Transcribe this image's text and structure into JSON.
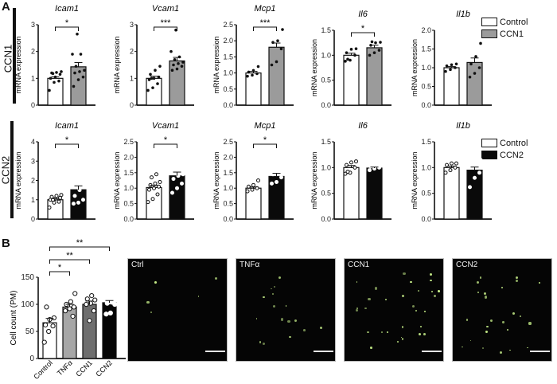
{
  "panels": {
    "A": {
      "letter": "A",
      "rows": [
        {
          "label": "CCN1",
          "treatment_color": "#9b9b9b",
          "legend": [
            "Control",
            "CCN1"
          ]
        },
        {
          "label": "CCN2",
          "treatment_color": "#0a0a0a",
          "legend": [
            "Control",
            "CCN2"
          ]
        }
      ]
    },
    "B": {
      "letter": "B",
      "images": [
        {
          "label": "Ctrl"
        },
        {
          "label": "TNFα"
        },
        {
          "label": "CCN1"
        },
        {
          "label": "CCN2"
        }
      ]
    }
  },
  "chart_data": [
    {
      "type": "bar",
      "panel": "A",
      "row": "CCN1",
      "title": "Icam1",
      "xlabel": "",
      "ylabel": "mRNA expression",
      "ylim": [
        0,
        3
      ],
      "yticks": [
        "0",
        "1",
        "2",
        "3"
      ],
      "categories": [
        "Control",
        "CCN1"
      ],
      "values": [
        1.0,
        1.43
      ],
      "errors": [
        0.06,
        0.16
      ],
      "significance": "*",
      "points": [
        [
          0.55,
          0.85,
          0.9,
          1.0,
          1.05,
          1.15,
          1.2,
          1.22,
          1.25,
          1.18
        ],
        [
          0.7,
          0.95,
          1.05,
          1.2,
          1.25,
          1.3,
          1.45,
          1.9,
          1.9,
          2.65
        ]
      ]
    },
    {
      "type": "bar",
      "panel": "A",
      "row": "CCN1",
      "title": "Vcam1",
      "xlabel": "",
      "ylabel": "mRNA expression",
      "ylim": [
        0,
        3
      ],
      "yticks": [
        "0",
        "1",
        "2",
        "3"
      ],
      "categories": [
        "Control",
        "CCN1"
      ],
      "values": [
        1.0,
        1.65
      ],
      "errors": [
        0.08,
        0.13
      ],
      "significance": "***",
      "points": [
        [
          0.55,
          0.65,
          0.8,
          0.95,
          1.0,
          1.05,
          1.15,
          1.3,
          1.45,
          1.0
        ],
        [
          1.3,
          1.35,
          1.45,
          1.5,
          1.55,
          1.6,
          1.7,
          1.8,
          2.0,
          2.8
        ]
      ]
    },
    {
      "type": "bar",
      "panel": "A",
      "row": "CCN1",
      "title": "Mcp1",
      "xlabel": "",
      "ylabel": "mRNA expression",
      "ylim": [
        0,
        2.5
      ],
      "yticks": [
        "0.0",
        "0.5",
        "1.0",
        "1.5",
        "2.0",
        "2.5"
      ],
      "categories": [
        "Control",
        "CCN1"
      ],
      "values": [
        1.0,
        1.8
      ],
      "errors": [
        0.05,
        0.13
      ],
      "significance": "***",
      "points": [
        [
          0.9,
          0.93,
          0.98,
          1.03,
          1.08,
          1.2
        ],
        [
          1.25,
          1.35,
          1.75,
          1.95,
          2.0,
          2.35
        ]
      ]
    },
    {
      "type": "bar",
      "panel": "A",
      "row": "CCN1",
      "title": "Il6",
      "xlabel": "",
      "ylabel": "mRNA expression",
      "ylim": [
        0,
        1.5
      ],
      "yticks": [
        "0.0",
        "0.5",
        "1.0",
        "1.5"
      ],
      "categories": [
        "Control",
        "CCN1"
      ],
      "values": [
        1.0,
        1.15
      ],
      "errors": [
        0.04,
        0.05
      ],
      "significance": "*",
      "points": [
        [
          0.88,
          0.9,
          1.0,
          1.05,
          1.12,
          1.13,
          0.92
        ],
        [
          1.0,
          1.05,
          1.1,
          1.2,
          1.25,
          1.26,
          1.27
        ]
      ]
    },
    {
      "type": "bar",
      "panel": "A",
      "row": "CCN1",
      "title": "Il1b",
      "xlabel": "",
      "ylabel": "mRNA expression",
      "ylim": [
        0,
        2.0
      ],
      "yticks": [
        "0.0",
        "0.5",
        "1.0",
        "1.5",
        "2.0"
      ],
      "categories": [
        "Control",
        "CCN1"
      ],
      "values": [
        1.0,
        1.14
      ],
      "errors": [
        0.03,
        0.12
      ],
      "significance": "",
      "points": [
        [
          0.9,
          0.95,
          1.0,
          1.05,
          1.08,
          1.1
        ],
        [
          0.75,
          0.85,
          1.0,
          1.1,
          1.3,
          1.65
        ]
      ]
    },
    {
      "type": "bar",
      "panel": "A",
      "row": "CCN2",
      "title": "Icam1",
      "xlabel": "",
      "ylabel": "mRNA expression",
      "ylim": [
        0,
        4
      ],
      "yticks": [
        "0",
        "1",
        "2",
        "3",
        "4"
      ],
      "categories": [
        "Control",
        "CCN2"
      ],
      "values": [
        1.0,
        1.52
      ],
      "errors": [
        0.06,
        0.2
      ],
      "significance": "*",
      "points": [
        [
          0.6,
          0.85,
          0.9,
          1.0,
          1.05,
          1.1,
          1.15,
          1.2,
          1.25,
          1.0
        ],
        [
          0.8,
          0.85,
          1.0,
          1.2,
          1.5,
          1.7,
          1.8,
          2.35,
          3.2
        ]
      ]
    },
    {
      "type": "bar",
      "panel": "A",
      "row": "CCN2",
      "title": "Vcam1",
      "xlabel": "",
      "ylabel": "mRNA expression",
      "ylim": [
        0,
        2.5
      ],
      "yticks": [
        "0.0",
        "0.5",
        "1.0",
        "1.5",
        "2.0",
        "2.5"
      ],
      "categories": [
        "Control",
        "CCN2"
      ],
      "values": [
        1.02,
        1.4
      ],
      "errors": [
        0.07,
        0.12
      ],
      "significance": "*",
      "points": [
        [
          0.55,
          0.65,
          0.8,
          0.95,
          1.0,
          1.05,
          1.1,
          1.15,
          1.2,
          1.35,
          1.45
        ],
        [
          0.85,
          1.0,
          1.15,
          1.3,
          1.4,
          1.45,
          1.75,
          1.85,
          2.35
        ]
      ]
    },
    {
      "type": "bar",
      "panel": "A",
      "row": "CCN2",
      "title": "Mcp1",
      "xlabel": "",
      "ylabel": "mRNA expression",
      "ylim": [
        0,
        2.5
      ],
      "yticks": [
        "0.0",
        "0.5",
        "1.0",
        "1.5",
        "2.0",
        "2.5"
      ],
      "categories": [
        "Control",
        "CCN2"
      ],
      "values": [
        1.0,
        1.38
      ],
      "errors": [
        0.04,
        0.1
      ],
      "significance": "*",
      "points": [
        [
          0.9,
          0.95,
          1.0,
          1.05,
          1.1,
          1.25
        ],
        [
          1.15,
          1.2,
          1.35,
          1.45,
          1.5,
          2.02
        ]
      ]
    },
    {
      "type": "bar",
      "panel": "A",
      "row": "CCN2",
      "title": "Il6",
      "xlabel": "",
      "ylabel": "mRNA expression",
      "ylim": [
        0,
        1.5
      ],
      "yticks": [
        "0.0",
        "0.5",
        "1.0",
        "1.5"
      ],
      "categories": [
        "Control",
        "CCN2"
      ],
      "values": [
        1.0,
        0.99
      ],
      "errors": [
        0.04,
        0.02
      ],
      "significance": "",
      "points": [
        [
          0.88,
          0.9,
          1.0,
          1.05,
          1.1,
          1.12,
          0.92
        ],
        [
          0.95,
          0.98,
          1.0,
          1.02,
          1.05,
          1.08
        ]
      ]
    },
    {
      "type": "bar",
      "panel": "A",
      "row": "CCN2",
      "title": "Il1b",
      "xlabel": "",
      "ylabel": "mRNA expression",
      "ylim": [
        0,
        1.5
      ],
      "yticks": [
        "0.0",
        "0.5",
        "1.0",
        "1.5"
      ],
      "categories": [
        "Control",
        "CCN2"
      ],
      "values": [
        1.0,
        0.95
      ],
      "errors": [
        0.03,
        0.06
      ],
      "significance": "",
      "points": [
        [
          0.9,
          0.95,
          1.0,
          1.05,
          1.08,
          1.08
        ],
        [
          0.62,
          0.8,
          0.9,
          1.05,
          1.06,
          1.15
        ]
      ]
    },
    {
      "type": "bar",
      "panel": "B",
      "title": "",
      "xlabel": "",
      "ylabel": "Cell count (PM)",
      "ylim": [
        0,
        150
      ],
      "yticks": [
        "0",
        "50",
        "100",
        "150"
      ],
      "categories": [
        "Control",
        "TNFα",
        "CCN1",
        "CCN2"
      ],
      "colors": [
        "#ffffff",
        "#a6a6a6",
        "#6e6e6e",
        "#050505"
      ],
      "values": [
        66,
        95,
        100,
        103
      ],
      "errors": [
        8,
        5,
        6,
        4
      ],
      "points": [
        [
          30,
          50,
          60,
          62,
          72,
          75,
          95
        ],
        [
          78,
          88,
          92,
          95,
          100,
          105,
          120
        ],
        [
          70,
          88,
          100,
          102,
          108,
          110,
          116
        ],
        [
          82,
          84,
          100,
          102,
          104,
          110,
          118
        ]
      ],
      "significance": [
        {
          "from": "Control",
          "to": "TNFα",
          "label": "*"
        },
        {
          "from": "Control",
          "to": "CCN1",
          "label": "**"
        },
        {
          "from": "Control",
          "to": "CCN2",
          "label": "**"
        }
      ]
    }
  ]
}
